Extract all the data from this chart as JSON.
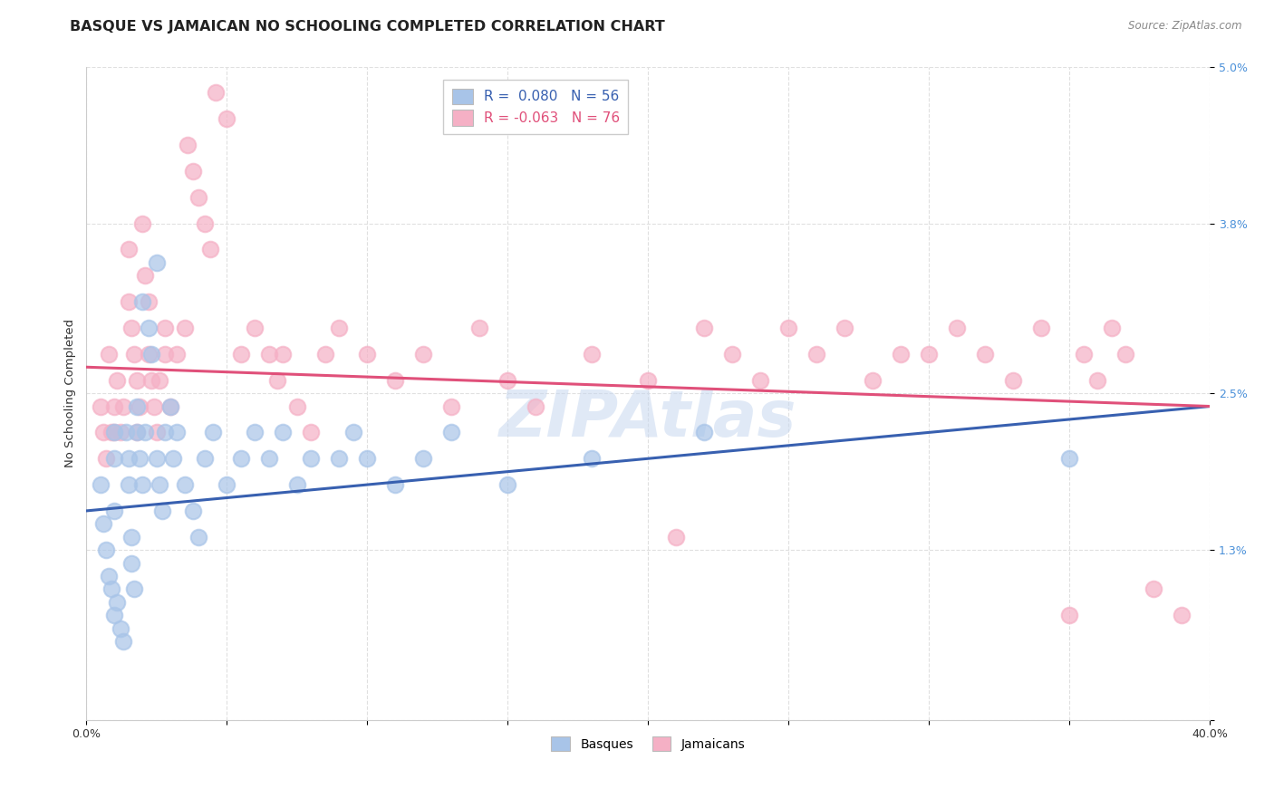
{
  "title": "BASQUE VS JAMAICAN NO SCHOOLING COMPLETED CORRELATION CHART",
  "source": "Source: ZipAtlas.com",
  "ylabel": "No Schooling Completed",
  "watermark": "ZIPAtlas",
  "x_min": 0.0,
  "x_max": 0.4,
  "y_min": 0.0,
  "y_max": 0.05,
  "x_ticks": [
    0.0,
    0.05,
    0.1,
    0.15,
    0.2,
    0.25,
    0.3,
    0.35,
    0.4
  ],
  "x_tick_labels": [
    "0.0%",
    "",
    "",
    "",
    "",
    "",
    "",
    "",
    "40.0%"
  ],
  "y_ticks": [
    0.0,
    0.013,
    0.025,
    0.038,
    0.05
  ],
  "y_tick_labels": [
    "",
    "1.3%",
    "2.5%",
    "3.8%",
    "5.0%"
  ],
  "blue_color": "#a8c4e8",
  "pink_color": "#f5b0c5",
  "blue_line_color": "#3860b0",
  "pink_line_color": "#e0507a",
  "blue_tick_color": "#4a90d9",
  "legend_blue_label": "R =  0.080   N = 56",
  "legend_pink_label": "R = -0.063   N = 76",
  "basques_label": "Basques",
  "jamaicans_label": "Jamaicans",
  "blue_scatter_x": [
    0.005,
    0.006,
    0.007,
    0.008,
    0.009,
    0.01,
    0.01,
    0.01,
    0.01,
    0.011,
    0.012,
    0.013,
    0.014,
    0.015,
    0.015,
    0.016,
    0.016,
    0.017,
    0.018,
    0.018,
    0.019,
    0.02,
    0.02,
    0.021,
    0.022,
    0.023,
    0.025,
    0.025,
    0.026,
    0.027,
    0.028,
    0.03,
    0.031,
    0.032,
    0.035,
    0.038,
    0.04,
    0.042,
    0.045,
    0.05,
    0.055,
    0.06,
    0.065,
    0.07,
    0.075,
    0.08,
    0.09,
    0.095,
    0.1,
    0.11,
    0.12,
    0.13,
    0.15,
    0.18,
    0.22,
    0.35
  ],
  "blue_scatter_y": [
    0.018,
    0.015,
    0.013,
    0.011,
    0.01,
    0.008,
    0.022,
    0.02,
    0.016,
    0.009,
    0.007,
    0.006,
    0.022,
    0.02,
    0.018,
    0.014,
    0.012,
    0.01,
    0.024,
    0.022,
    0.02,
    0.032,
    0.018,
    0.022,
    0.03,
    0.028,
    0.035,
    0.02,
    0.018,
    0.016,
    0.022,
    0.024,
    0.02,
    0.022,
    0.018,
    0.016,
    0.014,
    0.02,
    0.022,
    0.018,
    0.02,
    0.022,
    0.02,
    0.022,
    0.018,
    0.02,
    0.02,
    0.022,
    0.02,
    0.018,
    0.02,
    0.022,
    0.018,
    0.02,
    0.022,
    0.02
  ],
  "pink_scatter_x": [
    0.005,
    0.006,
    0.007,
    0.008,
    0.009,
    0.01,
    0.01,
    0.011,
    0.012,
    0.013,
    0.015,
    0.015,
    0.016,
    0.017,
    0.018,
    0.018,
    0.019,
    0.02,
    0.021,
    0.022,
    0.022,
    0.023,
    0.024,
    0.025,
    0.026,
    0.028,
    0.028,
    0.03,
    0.032,
    0.035,
    0.036,
    0.038,
    0.04,
    0.042,
    0.044,
    0.046,
    0.05,
    0.055,
    0.06,
    0.065,
    0.068,
    0.07,
    0.075,
    0.08,
    0.085,
    0.09,
    0.1,
    0.11,
    0.12,
    0.13,
    0.14,
    0.15,
    0.16,
    0.18,
    0.2,
    0.21,
    0.22,
    0.23,
    0.24,
    0.25,
    0.26,
    0.27,
    0.28,
    0.29,
    0.3,
    0.31,
    0.32,
    0.33,
    0.34,
    0.35,
    0.355,
    0.36,
    0.365,
    0.37,
    0.38,
    0.39
  ],
  "pink_scatter_y": [
    0.024,
    0.022,
    0.02,
    0.028,
    0.022,
    0.024,
    0.022,
    0.026,
    0.022,
    0.024,
    0.036,
    0.032,
    0.03,
    0.028,
    0.026,
    0.022,
    0.024,
    0.038,
    0.034,
    0.032,
    0.028,
    0.026,
    0.024,
    0.022,
    0.026,
    0.03,
    0.028,
    0.024,
    0.028,
    0.03,
    0.044,
    0.042,
    0.04,
    0.038,
    0.036,
    0.048,
    0.046,
    0.028,
    0.03,
    0.028,
    0.026,
    0.028,
    0.024,
    0.022,
    0.028,
    0.03,
    0.028,
    0.026,
    0.028,
    0.024,
    0.03,
    0.026,
    0.024,
    0.028,
    0.026,
    0.014,
    0.03,
    0.028,
    0.026,
    0.03,
    0.028,
    0.03,
    0.026,
    0.028,
    0.028,
    0.03,
    0.028,
    0.026,
    0.03,
    0.008,
    0.028,
    0.026,
    0.03,
    0.028,
    0.01,
    0.008
  ],
  "blue_line_x0": 0.0,
  "blue_line_y0": 0.016,
  "blue_line_x1": 0.4,
  "blue_line_y1": 0.024,
  "pink_line_x0": 0.0,
  "pink_line_y0": 0.027,
  "pink_line_x1": 0.4,
  "pink_line_y1": 0.024,
  "background_color": "#ffffff",
  "grid_color": "#e0e0e0",
  "title_fontsize": 11.5,
  "tick_fontsize": 9,
  "watermark_fontsize": 52,
  "watermark_color": "#c8d8f0",
  "watermark_alpha": 0.55
}
